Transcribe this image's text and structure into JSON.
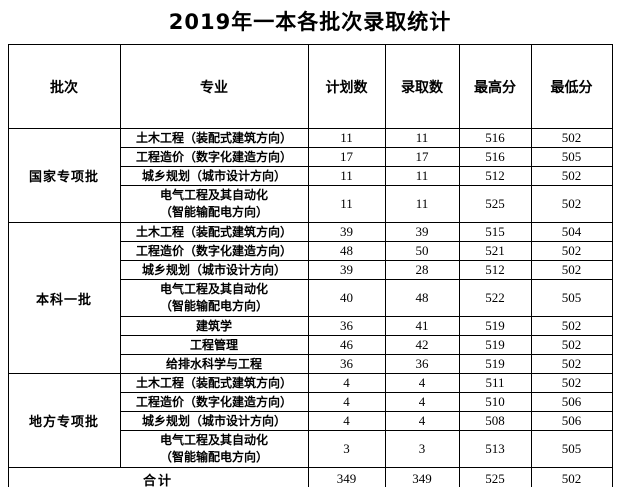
{
  "title": "2019年一本各批次录取统计",
  "table": {
    "headers": [
      "批次",
      "专业",
      "计划数",
      "录取数",
      "最高分",
      "最低分"
    ],
    "groups": [
      {
        "batch": "国家专项批",
        "rows": [
          {
            "major": "土木工程（装配式建筑方向）",
            "plan": "11",
            "admitted": "11",
            "max": "516",
            "min": "502"
          },
          {
            "major": "工程造价（数字化建造方向）",
            "plan": "17",
            "admitted": "17",
            "max": "516",
            "min": "505"
          },
          {
            "major": "城乡规划（城市设计方向）",
            "plan": "11",
            "admitted": "11",
            "max": "512",
            "min": "502"
          },
          {
            "major": "电气工程及其自动化\n（智能输配电方向）",
            "plan": "11",
            "admitted": "11",
            "max": "525",
            "min": "502"
          }
        ]
      },
      {
        "batch": "本科一批",
        "rows": [
          {
            "major": "土木工程（装配式建筑方向）",
            "plan": "39",
            "admitted": "39",
            "max": "515",
            "min": "504"
          },
          {
            "major": "工程造价（数字化建造方向）",
            "plan": "48",
            "admitted": "50",
            "max": "521",
            "min": "502"
          },
          {
            "major": "城乡规划（城市设计方向）",
            "plan": "39",
            "admitted": "28",
            "max": "512",
            "min": "502"
          },
          {
            "major": "电气工程及其自动化\n（智能输配电方向）",
            "plan": "40",
            "admitted": "48",
            "max": "522",
            "min": "505"
          },
          {
            "major": "建筑学",
            "plan": "36",
            "admitted": "41",
            "max": "519",
            "min": "502"
          },
          {
            "major": "工程管理",
            "plan": "46",
            "admitted": "42",
            "max": "519",
            "min": "502"
          },
          {
            "major": "给排水科学与工程",
            "plan": "36",
            "admitted": "36",
            "max": "519",
            "min": "502"
          }
        ]
      },
      {
        "batch": "地方专项批",
        "rows": [
          {
            "major": "土木工程（装配式建筑方向）",
            "plan": "4",
            "admitted": "4",
            "max": "511",
            "min": "502"
          },
          {
            "major": "工程造价（数字化建造方向）",
            "plan": "4",
            "admitted": "4",
            "max": "510",
            "min": "506"
          },
          {
            "major": "城乡规划（城市设计方向）",
            "plan": "4",
            "admitted": "4",
            "max": "508",
            "min": "506"
          },
          {
            "major": "电气工程及其自动化\n（智能输配电方向）",
            "plan": "3",
            "admitted": "3",
            "max": "513",
            "min": "505"
          }
        ]
      }
    ],
    "total": {
      "label": "合计",
      "plan": "349",
      "admitted": "349",
      "max": "525",
      "min": "502"
    }
  },
  "colors": {
    "border": "#000000",
    "text": "#000000",
    "background": "#ffffff"
  }
}
